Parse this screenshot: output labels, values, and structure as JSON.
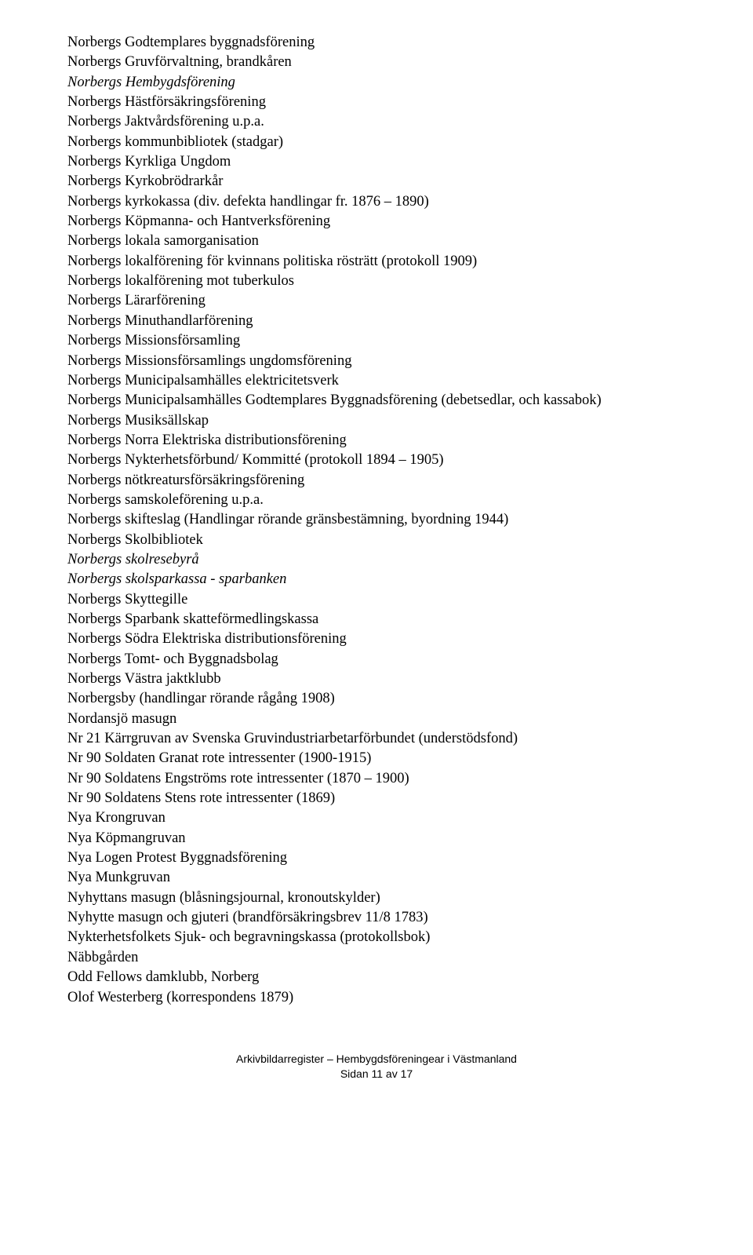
{
  "entries": [
    {
      "text": "Norbergs Godtemplares byggnadsförening",
      "italic": false
    },
    {
      "text": "Norbergs Gruvförvaltning, brandkåren",
      "italic": false
    },
    {
      "text": "Norbergs Hembygdsförening",
      "italic": true
    },
    {
      "text": "Norbergs Hästförsäkringsförening",
      "italic": false
    },
    {
      "text": "Norbergs Jaktvårdsförening u.p.a.",
      "italic": false
    },
    {
      "text": "Norbergs kommunbibliotek (stadgar)",
      "italic": false
    },
    {
      "text": "Norbergs Kyrkliga Ungdom",
      "italic": false
    },
    {
      "text": "Norbergs Kyrkobrödrarkår",
      "italic": false
    },
    {
      "text": "Norbergs kyrkokassa (div. defekta handlingar fr. 1876 – 1890)",
      "italic": false
    },
    {
      "text": "Norbergs Köpmanna- och Hantverksförening",
      "italic": false
    },
    {
      "text": "Norbergs lokala samorganisation",
      "italic": false
    },
    {
      "text": "Norbergs lokalförening för kvinnans politiska rösträtt (protokoll 1909)",
      "italic": false
    },
    {
      "text": "Norbergs lokalförening mot tuberkulos",
      "italic": false
    },
    {
      "text": "Norbergs Lärarförening",
      "italic": false
    },
    {
      "text": "Norbergs Minuthandlarförening",
      "italic": false
    },
    {
      "text": "Norbergs Missionsförsamling",
      "italic": false
    },
    {
      "text": "Norbergs Missionsförsamlings ungdomsförening",
      "italic": false
    },
    {
      "text": "Norbergs Municipalsamhälles elektricitetsverk",
      "italic": false
    },
    {
      "text": "Norbergs Municipalsamhälles Godtemplares Byggnadsförening (debetsedlar, och kassabok)",
      "italic": false
    },
    {
      "text": "Norbergs Musiksällskap",
      "italic": false
    },
    {
      "text": "Norbergs Norra Elektriska distributionsförening",
      "italic": false
    },
    {
      "text": "Norbergs Nykterhetsförbund/ Kommitté (protokoll 1894 – 1905)",
      "italic": false
    },
    {
      "text": "Norbergs nötkreatursförsäkringsförening",
      "italic": false
    },
    {
      "text": "Norbergs samskoleförening u.p.a.",
      "italic": false
    },
    {
      "text": "Norbergs skifteslag (Handlingar rörande gränsbestämning, byordning 1944)",
      "italic": false
    },
    {
      "text": "Norbergs Skolbibliotek",
      "italic": false
    },
    {
      "text": "Norbergs skolresebyrå",
      "italic": true
    },
    {
      "text": "Norbergs skolsparkassa - sparbanken",
      "italic": true
    },
    {
      "text": "Norbergs Skyttegille",
      "italic": false
    },
    {
      "text": "Norbergs Sparbank skatteförmedlingskassa",
      "italic": false
    },
    {
      "text": "Norbergs Södra Elektriska distributionsförening",
      "italic": false
    },
    {
      "text": "Norbergs Tomt- och Byggnadsbolag",
      "italic": false
    },
    {
      "text": "Norbergs Västra jaktklubb",
      "italic": false
    },
    {
      "text": "Norbergsby (handlingar rörande rågång 1908)",
      "italic": false
    },
    {
      "text": "Nordansjö masugn",
      "italic": false
    },
    {
      "text": "Nr 21 Kärrgruvan av Svenska Gruvindustriarbetarförbundet (understödsfond)",
      "italic": false
    },
    {
      "text": "Nr 90 Soldaten Granat rote intressenter (1900-1915)",
      "italic": false
    },
    {
      "text": "Nr 90 Soldatens Engströms rote intressenter (1870 – 1900)",
      "italic": false
    },
    {
      "text": "Nr 90 Soldatens Stens rote intressenter (1869)",
      "italic": false
    },
    {
      "text": "Nya Krongruvan",
      "italic": false
    },
    {
      "text": "Nya Köpmangruvan",
      "italic": false
    },
    {
      "text": "Nya Logen Protest Byggnadsförening",
      "italic": false
    },
    {
      "text": "Nya Munkgruvan",
      "italic": false
    },
    {
      "text": "Nyhyttans masugn (blåsningsjournal, kronoutskylder)",
      "italic": false
    },
    {
      "text": "Nyhytte masugn och gjuteri (brandförsäkringsbrev 11/8 1783)",
      "italic": false
    },
    {
      "text": "Nykterhetsfolkets Sjuk- och begravningskassa (protokollsbok)",
      "italic": false
    },
    {
      "text": "Näbbgården",
      "italic": false
    },
    {
      "text": "Odd Fellows damklubb, Norberg",
      "italic": false
    },
    {
      "text": "Olof Westerberg (korrespondens 1879)",
      "italic": false
    }
  ],
  "footer": {
    "line1": "Arkivbildarregister – Hembygdsföreningear i Västmanland",
    "line2": "Sidan 11 av 17"
  }
}
